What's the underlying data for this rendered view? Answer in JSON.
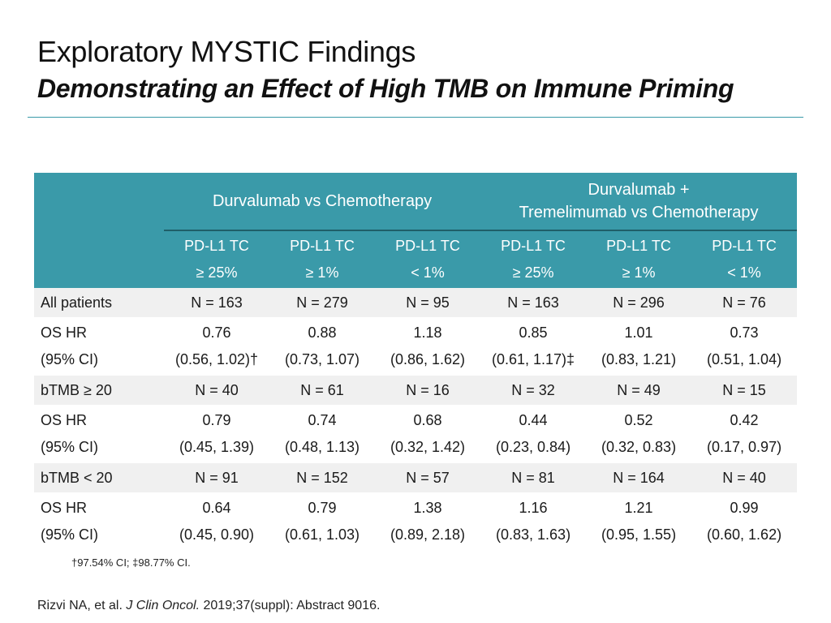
{
  "title": "Exploratory MYSTIC Findings",
  "subtitle": "Demonstrating an Effect of High TMB on Immune Priming",
  "table": {
    "groups": [
      {
        "lines": [
          "Durvalumab vs Chemotherapy"
        ]
      },
      {
        "lines": [
          "Durvalumab +",
          "Tremelimumab vs Chemotherapy"
        ]
      }
    ],
    "subheaders": [
      [
        "PD-L1 TC",
        "≥ 25%"
      ],
      [
        "PD-L1 TC",
        "≥ 1%"
      ],
      [
        "PD-L1 TC",
        "< 1%"
      ],
      [
        "PD-L1 TC",
        "≥ 25%"
      ],
      [
        "PD-L1 TC",
        "≥ 1%"
      ],
      [
        "PD-L1 TC",
        "< 1%"
      ]
    ],
    "rows": [
      {
        "kind": "n",
        "label": "All patients",
        "values": [
          "N = 163",
          "N = 279",
          "N = 95",
          "N = 163",
          "N = 296",
          "N = 76"
        ]
      },
      {
        "kind": "hr",
        "label": [
          "OS HR",
          "(95% CI)"
        ],
        "values": [
          [
            "0.76",
            "(0.56, 1.02)†"
          ],
          [
            "0.88",
            "(0.73, 1.07)"
          ],
          [
            "1.18",
            "(0.86, 1.62)"
          ],
          [
            "0.85",
            "(0.61, 1.17)‡"
          ],
          [
            "1.01",
            "(0.83, 1.21)"
          ],
          [
            "0.73",
            "(0.51, 1.04)"
          ]
        ]
      },
      {
        "kind": "n",
        "label": "bTMB ≥ 20",
        "values": [
          "N = 40",
          "N = 61",
          "N = 16",
          "N = 32",
          "N = 49",
          "N = 15"
        ]
      },
      {
        "kind": "hr",
        "label": [
          "OS HR",
          "(95% CI)"
        ],
        "values": [
          [
            "0.79",
            "(0.45, 1.39)"
          ],
          [
            "0.74",
            "(0.48, 1.13)"
          ],
          [
            "0.68",
            "(0.32, 1.42)"
          ],
          [
            "0.44",
            "(0.23, 0.84)"
          ],
          [
            "0.52",
            "(0.32, 0.83)"
          ],
          [
            "0.42",
            "(0.17, 0.97)"
          ]
        ]
      },
      {
        "kind": "n",
        "label": "bTMB < 20",
        "values": [
          "N = 91",
          "N = 152",
          "N = 57",
          "N = 81",
          "N = 164",
          "N = 40"
        ]
      },
      {
        "kind": "hr",
        "label": [
          "OS HR",
          "(95% CI)"
        ],
        "values": [
          [
            "0.64",
            "(0.45, 0.90)"
          ],
          [
            "0.79",
            "(0.61, 1.03)"
          ],
          [
            "1.38",
            "(0.89, 2.18)"
          ],
          [
            "1.16",
            "(0.83, 1.63)"
          ],
          [
            "1.21",
            "(0.95, 1.55)"
          ],
          [
            "0.99",
            "(0.60, 1.62)"
          ]
        ]
      }
    ]
  },
  "footnote": "†97.54% CI; ‡98.77% CI.",
  "citation": {
    "prefix": "Rizvi NA, et al. ",
    "journal": "J Clin Oncol.",
    "suffix": " 2019;37(suppl): Abstract 9016."
  },
  "colors": {
    "header_bg": "#3a9aa9",
    "header_text": "#ffffff",
    "band_bg": "#f0f0f0",
    "rule": "#3a9aa9"
  }
}
